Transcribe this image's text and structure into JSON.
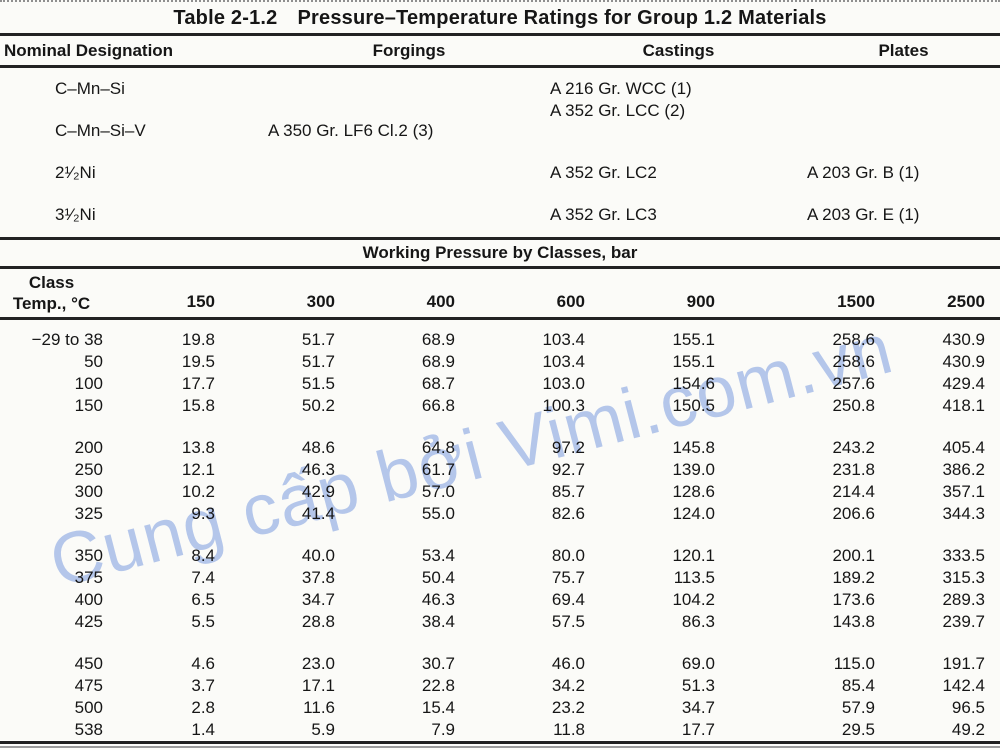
{
  "title": {
    "label": "Table 2-1.2",
    "text": "Pressure–Temperature Ratings for Group 1.2 Materials"
  },
  "materials_table": {
    "col_nominal": "Nominal Designation",
    "col_forgings": "Forgings",
    "col_castings": "Castings",
    "col_plates": "Plates",
    "rows": [
      {
        "designation": "C–Mn–Si",
        "forgings": "",
        "castings": "A 216 Gr. WCC (1)",
        "castings2": "A 352 Gr. LCC (2)",
        "plates": ""
      },
      {
        "designation": "C–Mn–Si–V",
        "forgings": "A 350 Gr. LF6 Cl.2 (3)",
        "castings": "",
        "castings2": "",
        "plates": ""
      },
      {
        "designation": "2¹⁄₂Ni",
        "forgings": "",
        "castings": "A 352 Gr. LC2",
        "castings2": "",
        "plates": "A 203 Gr. B (1)"
      },
      {
        "designation": "3¹⁄₂Ni",
        "forgings": "",
        "castings": "A 352 Gr. LC3",
        "castings2": "",
        "plates": "A 203 Gr. E (1)"
      }
    ]
  },
  "pressure_table": {
    "section_title": "Working Pressure by Classes, bar",
    "col_class_line1": "Class",
    "col_class_line2": "Temp., °C",
    "class_headers": [
      "150",
      "300",
      "400",
      "600",
      "900",
      "1500",
      "2500"
    ],
    "row_groups": [
      [
        {
          "temp": "−29 to 38",
          "values": [
            "19.8",
            "51.7",
            "68.9",
            "103.4",
            "155.1",
            "258.6",
            "430.9"
          ]
        },
        {
          "temp": "50",
          "values": [
            "19.5",
            "51.7",
            "68.9",
            "103.4",
            "155.1",
            "258.6",
            "430.9"
          ]
        },
        {
          "temp": "100",
          "values": [
            "17.7",
            "51.5",
            "68.7",
            "103.0",
            "154.6",
            "257.6",
            "429.4"
          ]
        },
        {
          "temp": "150",
          "values": [
            "15.8",
            "50.2",
            "66.8",
            "100.3",
            "150.5",
            "250.8",
            "418.1"
          ]
        }
      ],
      [
        {
          "temp": "200",
          "values": [
            "13.8",
            "48.6",
            "64.8",
            "97.2",
            "145.8",
            "243.2",
            "405.4"
          ]
        },
        {
          "temp": "250",
          "values": [
            "12.1",
            "46.3",
            "61.7",
            "92.7",
            "139.0",
            "231.8",
            "386.2"
          ]
        },
        {
          "temp": "300",
          "values": [
            "10.2",
            "42.9",
            "57.0",
            "85.7",
            "128.6",
            "214.4",
            "357.1"
          ]
        },
        {
          "temp": "325",
          "values": [
            "9.3",
            "41.4",
            "55.0",
            "82.6",
            "124.0",
            "206.6",
            "344.3"
          ]
        }
      ],
      [
        {
          "temp": "350",
          "values": [
            "8.4",
            "40.0",
            "53.4",
            "80.0",
            "120.1",
            "200.1",
            "333.5"
          ]
        },
        {
          "temp": "375",
          "values": [
            "7.4",
            "37.8",
            "50.4",
            "75.7",
            "113.5",
            "189.2",
            "315.3"
          ]
        },
        {
          "temp": "400",
          "values": [
            "6.5",
            "34.7",
            "46.3",
            "69.4",
            "104.2",
            "173.6",
            "289.3"
          ]
        },
        {
          "temp": "425",
          "values": [
            "5.5",
            "28.8",
            "38.4",
            "57.5",
            "86.3",
            "143.8",
            "239.7"
          ]
        }
      ],
      [
        {
          "temp": "450",
          "values": [
            "4.6",
            "23.0",
            "30.7",
            "46.0",
            "69.0",
            "115.0",
            "191.7"
          ]
        },
        {
          "temp": "475",
          "values": [
            "3.7",
            "17.1",
            "22.8",
            "34.2",
            "51.3",
            "85.4",
            "142.4"
          ]
        },
        {
          "temp": "500",
          "values": [
            "2.8",
            "11.6",
            "15.4",
            "23.2",
            "34.7",
            "57.9",
            "96.5"
          ]
        },
        {
          "temp": "538",
          "values": [
            "1.4",
            "5.9",
            "7.9",
            "11.8",
            "17.7",
            "29.5",
            "49.2"
          ]
        }
      ]
    ]
  },
  "watermark": {
    "text": "Cung cấp bởi Vimi.com.vn",
    "color": "#b4c6ea"
  }
}
